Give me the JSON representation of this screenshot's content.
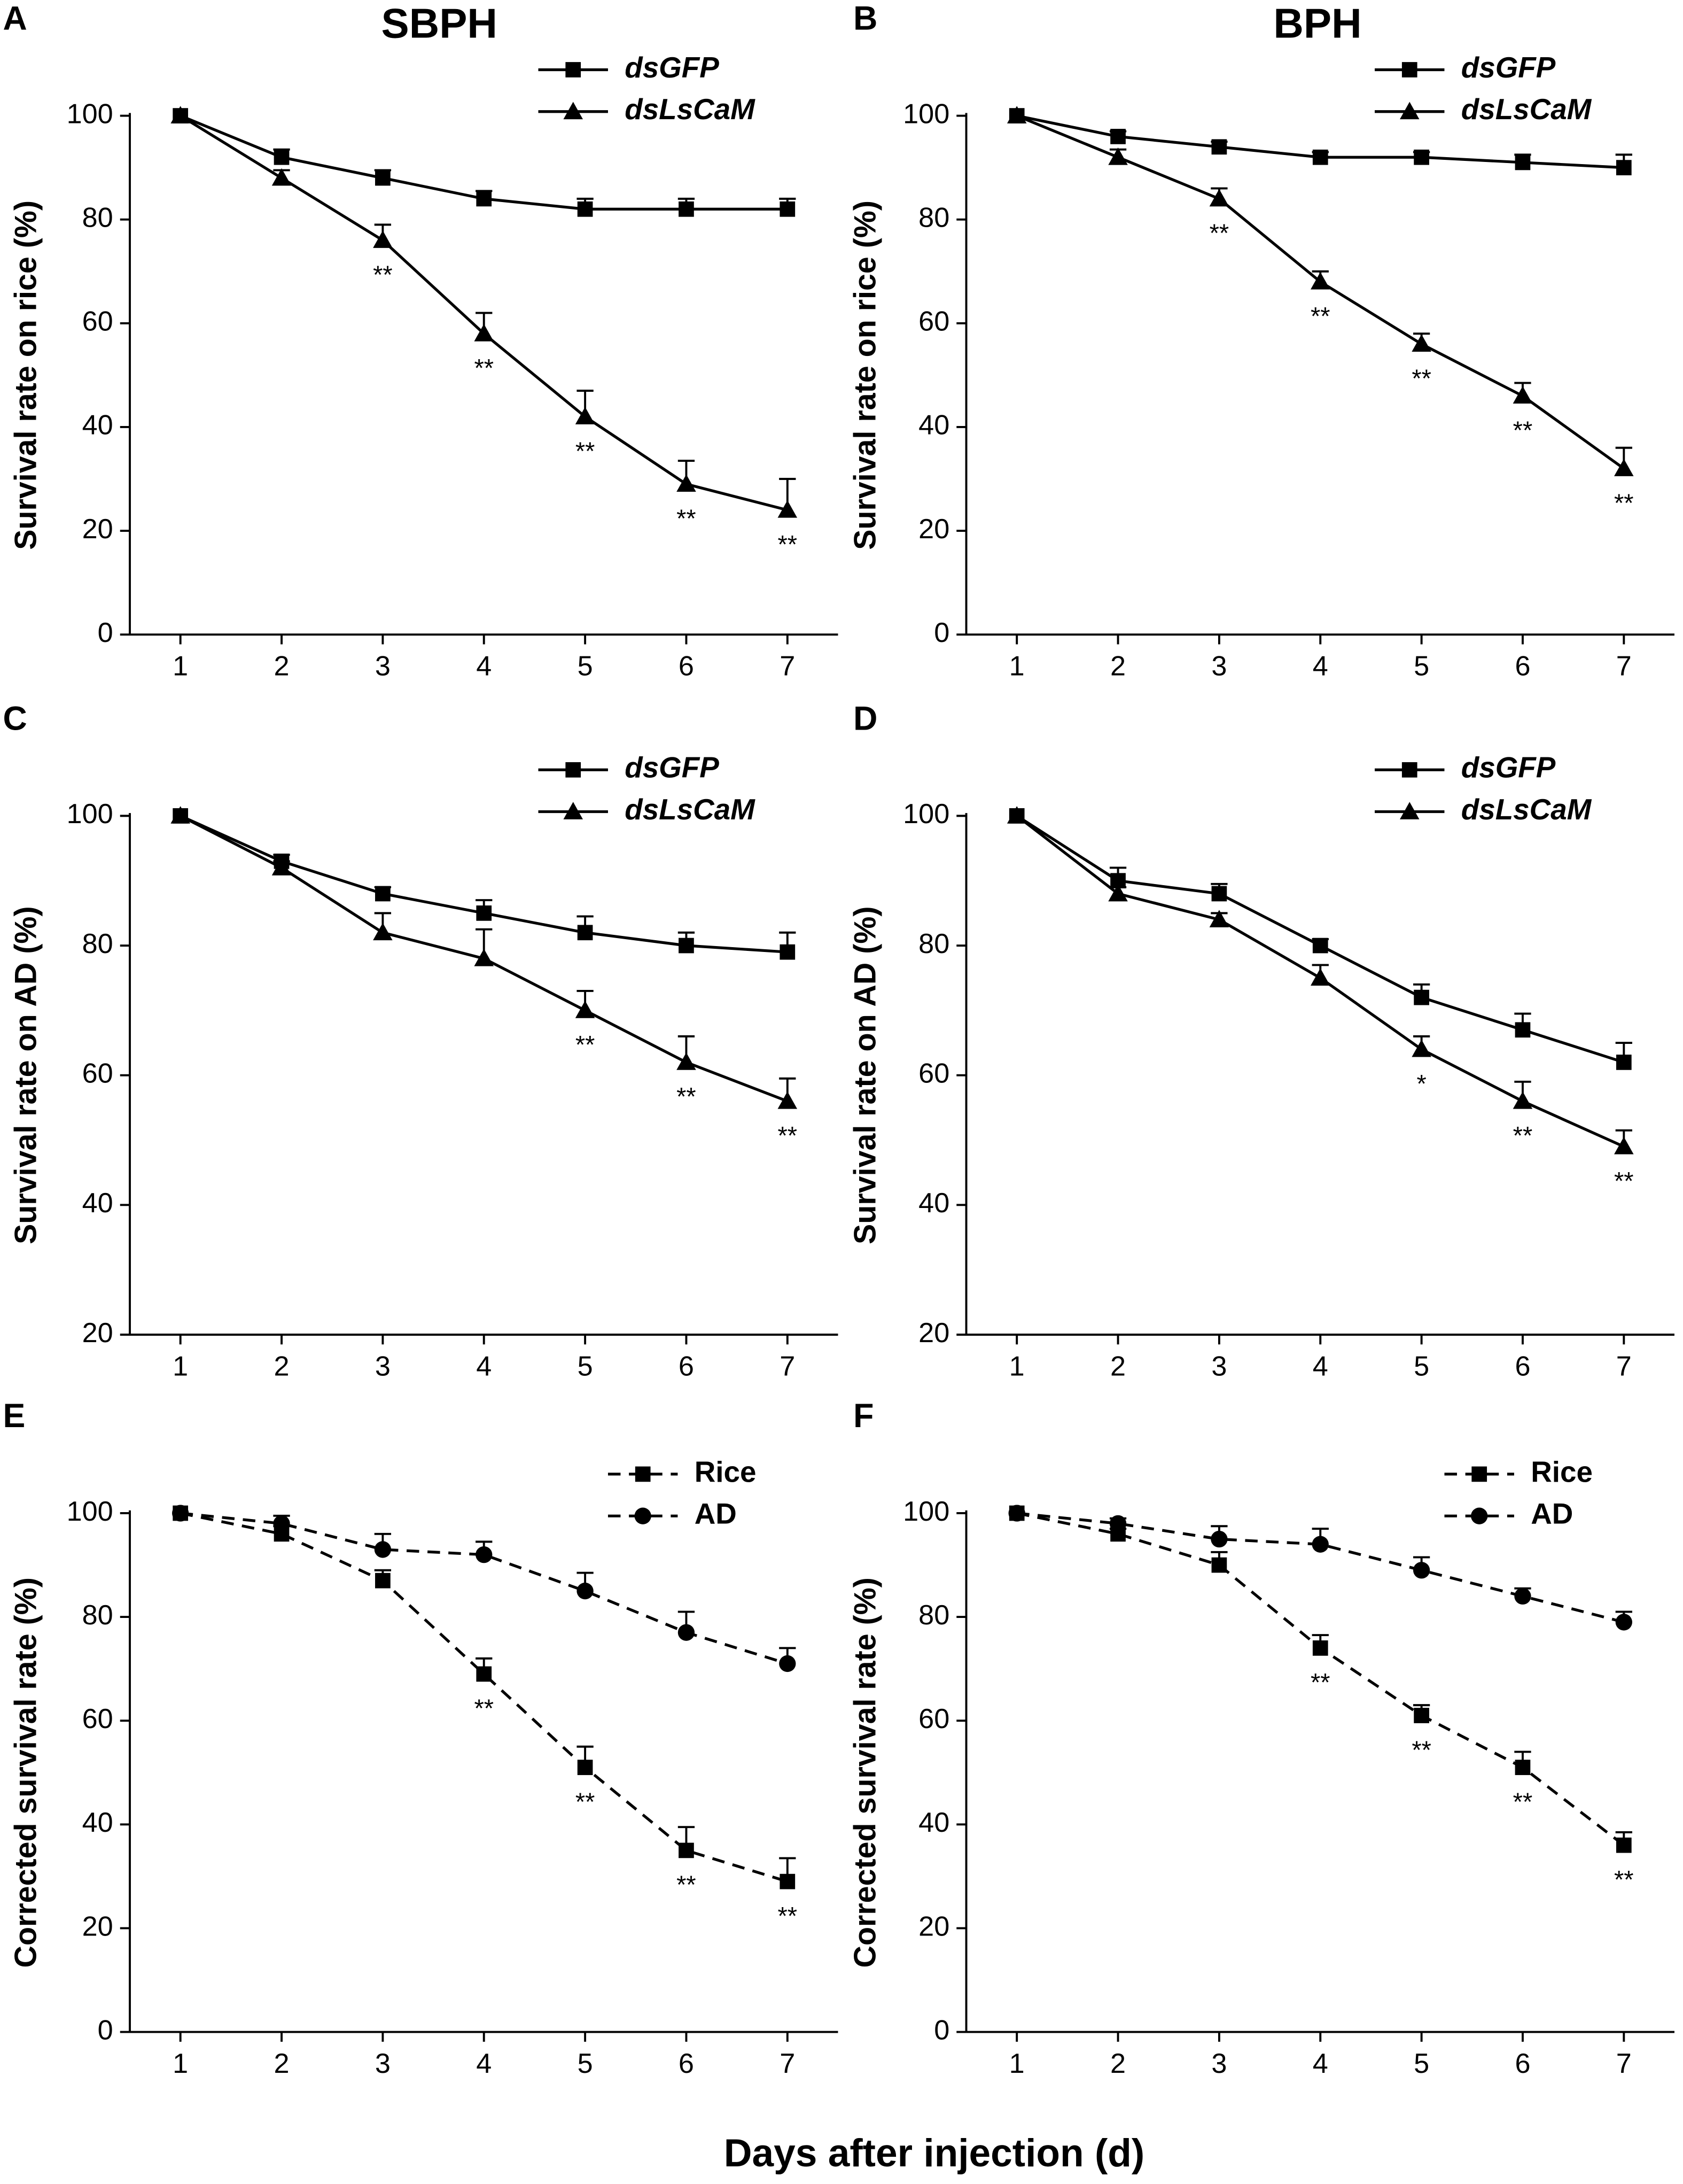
{
  "xlabel": "Days after injection (d)",
  "chart_data": [
    {
      "type": "line",
      "panel": "A",
      "title": "SBPH",
      "ylabel": "Survival rate on rice (%)",
      "x": [
        1,
        2,
        3,
        4,
        5,
        6,
        7
      ],
      "xlim": [
        0.5,
        7.5
      ],
      "xticks": [
        1,
        2,
        3,
        4,
        5,
        6,
        7
      ],
      "ylim": [
        0,
        100
      ],
      "yticks": [
        0,
        20,
        40,
        60,
        80,
        100
      ],
      "legend": "upper right",
      "series": [
        {
          "name": "dsGFP",
          "color": "#000000",
          "marker": "square",
          "dashed": false,
          "values": [
            100,
            92,
            88,
            84,
            82,
            82,
            82
          ],
          "errors": [
            0,
            1.5,
            1.5,
            1.5,
            2,
            2,
            2
          ],
          "point_labels": [
            null,
            null,
            null,
            null,
            null,
            null,
            null
          ]
        },
        {
          "name": "dsLsCaM",
          "color": "#000000",
          "marker": "triangle",
          "dashed": false,
          "values": [
            100,
            88,
            76,
            58,
            42,
            29,
            24
          ],
          "errors": [
            0,
            1.5,
            3,
            4,
            5,
            4.5,
            6
          ],
          "point_labels": [
            null,
            null,
            "**",
            "**",
            "**",
            "**",
            "**"
          ]
        }
      ]
    },
    {
      "type": "line",
      "panel": "B",
      "title": "BPH",
      "ylabel": "Survival rate on rice (%)",
      "x": [
        1,
        2,
        3,
        4,
        5,
        6,
        7
      ],
      "xlim": [
        0.5,
        7.5
      ],
      "xticks": [
        1,
        2,
        3,
        4,
        5,
        6,
        7
      ],
      "ylim": [
        0,
        100
      ],
      "yticks": [
        0,
        20,
        40,
        60,
        80,
        100
      ],
      "legend": "upper right",
      "series": [
        {
          "name": "dsGFP",
          "color": "#000000",
          "marker": "square",
          "dashed": false,
          "values": [
            100,
            96,
            94,
            92,
            92,
            91,
            90
          ],
          "errors": [
            0,
            1,
            1,
            1,
            1,
            1.5,
            2.5
          ],
          "point_labels": [
            null,
            null,
            null,
            null,
            null,
            null,
            null
          ]
        },
        {
          "name": "dsLsCaM",
          "color": "#000000",
          "marker": "triangle",
          "dashed": false,
          "values": [
            100,
            92,
            84,
            68,
            56,
            46,
            32
          ],
          "errors": [
            0,
            1.5,
            2,
            2,
            2,
            2.5,
            4
          ],
          "point_labels": [
            null,
            null,
            "**",
            "**",
            "**",
            "**",
            "**"
          ]
        }
      ]
    },
    {
      "type": "line",
      "panel": "C",
      "ylabel": "Survival rate on AD (%)",
      "x": [
        1,
        2,
        3,
        4,
        5,
        6,
        7
      ],
      "xlim": [
        0.5,
        7.5
      ],
      "xticks": [
        1,
        2,
        3,
        4,
        5,
        6,
        7
      ],
      "ylim": [
        20,
        100
      ],
      "yticks": [
        20,
        40,
        60,
        80,
        100
      ],
      "legend": "upper right",
      "series": [
        {
          "name": "dsGFP",
          "color": "#000000",
          "marker": "square",
          "dashed": false,
          "values": [
            100,
            93,
            88,
            85,
            82,
            80,
            79
          ],
          "errors": [
            0,
            1,
            1,
            2,
            2.5,
            2,
            3
          ],
          "point_labels": [
            null,
            null,
            null,
            null,
            null,
            null,
            null
          ]
        },
        {
          "name": "dsLsCaM",
          "color": "#000000",
          "marker": "triangle",
          "dashed": false,
          "values": [
            100,
            92,
            82,
            78,
            70,
            62,
            56
          ],
          "errors": [
            0,
            1,
            3,
            4.5,
            3,
            4,
            3.5
          ],
          "point_labels": [
            null,
            null,
            null,
            null,
            "**",
            "**",
            "**"
          ]
        }
      ]
    },
    {
      "type": "line",
      "panel": "D",
      "ylabel": "Survival rate on AD (%)",
      "x": [
        1,
        2,
        3,
        4,
        5,
        6,
        7
      ],
      "xlim": [
        0.5,
        7.5
      ],
      "xticks": [
        1,
        2,
        3,
        4,
        5,
        6,
        7
      ],
      "ylim": [
        20,
        100
      ],
      "yticks": [
        20,
        40,
        60,
        80,
        100
      ],
      "legend": "upper right",
      "series": [
        {
          "name": "dsGFP",
          "color": "#000000",
          "marker": "square",
          "dashed": false,
          "values": [
            100,
            90,
            88,
            80,
            72,
            67,
            62
          ],
          "errors": [
            0,
            2,
            1.5,
            1,
            2,
            2.5,
            3
          ],
          "point_labels": [
            null,
            null,
            null,
            null,
            null,
            null,
            null
          ]
        },
        {
          "name": "dsLsCaM",
          "color": "#000000",
          "marker": "triangle",
          "dashed": false,
          "values": [
            100,
            88,
            84,
            75,
            64,
            56,
            49
          ],
          "errors": [
            0,
            1,
            1,
            2,
            2,
            3,
            2.5
          ],
          "point_labels": [
            null,
            null,
            null,
            null,
            "*",
            "**",
            "**"
          ]
        }
      ]
    },
    {
      "type": "line",
      "panel": "E",
      "ylabel": "Corrected survival rate (%)",
      "x": [
        1,
        2,
        3,
        4,
        5,
        6,
        7
      ],
      "xlim": [
        0.5,
        7.5
      ],
      "xticks": [
        1,
        2,
        3,
        4,
        5,
        6,
        7
      ],
      "ylim": [
        0,
        100
      ],
      "yticks": [
        0,
        20,
        40,
        60,
        80,
        100
      ],
      "legend": "upper right",
      "series": [
        {
          "name": "Rice",
          "color": "#000000",
          "marker": "square",
          "dashed": true,
          "values": [
            100,
            96,
            87,
            69,
            51,
            35,
            29
          ],
          "errors": [
            0,
            1.5,
            2,
            3,
            4,
            4.5,
            4.5
          ],
          "point_labels": [
            null,
            null,
            null,
            "**",
            "**",
            "**",
            "**"
          ]
        },
        {
          "name": "AD",
          "color": "#000000",
          "marker": "circle",
          "dashed": true,
          "values": [
            100,
            98,
            93,
            92,
            85,
            77,
            71
          ],
          "errors": [
            0,
            1.5,
            3,
            2.5,
            3.5,
            4,
            3
          ],
          "point_labels": [
            null,
            null,
            null,
            null,
            null,
            null,
            null
          ]
        }
      ]
    },
    {
      "type": "line",
      "panel": "F",
      "ylabel": "Corrected survival rate (%)",
      "x": [
        1,
        2,
        3,
        4,
        5,
        6,
        7
      ],
      "xlim": [
        0.5,
        7.5
      ],
      "xticks": [
        1,
        2,
        3,
        4,
        5,
        6,
        7
      ],
      "ylim": [
        0,
        100
      ],
      "yticks": [
        0,
        20,
        40,
        60,
        80,
        100
      ],
      "legend": "upper right",
      "series": [
        {
          "name": "Rice",
          "color": "#000000",
          "marker": "square",
          "dashed": true,
          "values": [
            100,
            96,
            90,
            74,
            61,
            51,
            36
          ],
          "errors": [
            0,
            1,
            2.5,
            2.5,
            2,
            3,
            2.5
          ],
          "point_labels": [
            null,
            null,
            null,
            "**",
            "**",
            "**",
            "**"
          ]
        },
        {
          "name": "AD",
          "color": "#000000",
          "marker": "circle",
          "dashed": true,
          "values": [
            100,
            98,
            95,
            94,
            89,
            84,
            79
          ],
          "errors": [
            0,
            1,
            2.5,
            3,
            2.5,
            1.5,
            2
          ],
          "point_labels": [
            null,
            null,
            null,
            null,
            null,
            null,
            null
          ]
        }
      ]
    }
  ]
}
